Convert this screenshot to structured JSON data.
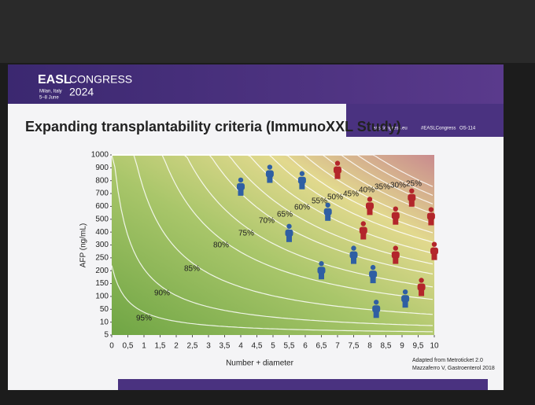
{
  "header": {
    "brand": "EASL",
    "event": "CONGRESS",
    "year": "2024",
    "place": "Milan, Italy",
    "dates": "5–8 June",
    "website": "easlcongress.eu",
    "hashtag": "#EASLCongress",
    "session": "OS-114"
  },
  "chart_data": {
    "type": "scatter",
    "title": "Expanding transplantability criteria (ImmunoXXL Study)",
    "xlabel": "Number + diameter",
    "ylabel": "AFP (ng/mL)",
    "xlim": [
      0,
      10
    ],
    "xticks": [
      0,
      {
        "value": 0.5,
        "label": "0,5"
      },
      1,
      {
        "value": 1.5,
        "label": "1,5"
      },
      2,
      {
        "value": 2.5,
        "label": "2,5"
      },
      3,
      {
        "value": 3.5,
        "label": "3,5"
      },
      4,
      {
        "value": 4.5,
        "label": "4,5"
      },
      5,
      {
        "value": 5.5,
        "label": "5,5"
      },
      6,
      {
        "value": 6.5,
        "label": "6,5"
      },
      7,
      {
        "value": 7.5,
        "label": "7,5"
      },
      8,
      {
        "value": 8.5,
        "label": "8,5"
      },
      9,
      {
        "value": 9.5,
        "label": "9,5"
      },
      10
    ],
    "ylim": [
      5,
      1000
    ],
    "yticks": [
      5,
      10,
      50,
      100,
      150,
      200,
      250,
      300,
      400,
      500,
      600,
      700,
      800,
      900,
      1000
    ],
    "contour_labels": [
      "95%",
      "90%",
      "85%",
      "80%",
      "75%",
      "70%",
      "65%",
      "60%",
      "55%",
      "50%",
      "45%",
      "40%",
      "35%",
      "30%",
      "25%"
    ],
    "series": [
      {
        "color": "#2f5fa3",
        "x": [
          4,
          4.9,
          5.9,
          6.7,
          5.5,
          6.5,
          7.5,
          8.1,
          9.1,
          8.2
        ],
        "y": [
          750,
          850,
          800,
          555,
          390,
          200,
          260,
          185,
          90,
          50
        ]
      },
      {
        "color": "#b3262b",
        "x": [
          7,
          8,
          9.3,
          8.8,
          9.9,
          7.8,
          8.8,
          10,
          9.6
        ],
        "y": [
          880,
          600,
          665,
          525,
          520,
          410,
          260,
          275,
          135
        ]
      }
    ],
    "annotations": [
      "Adapted from Metroticket 2.0",
      "Mazzaferro V, Gastroenterol 2018"
    ]
  }
}
